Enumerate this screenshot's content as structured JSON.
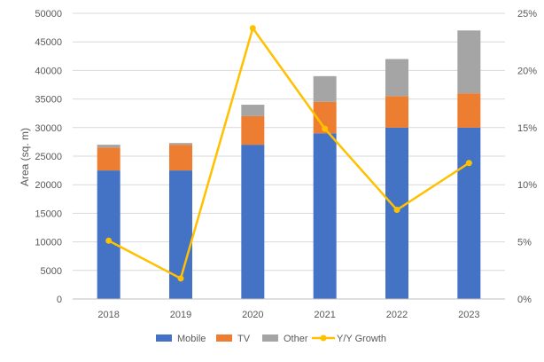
{
  "chart_data": {
    "type": "bar",
    "stacked": true,
    "categories": [
      "2018",
      "2019",
      "2020",
      "2021",
      "2022",
      "2023"
    ],
    "series": [
      {
        "name": "Mobile",
        "type": "bar",
        "axis": "primary",
        "color": "#4472C4",
        "values": [
          22500,
          22500,
          27000,
          29000,
          30000,
          30000
        ]
      },
      {
        "name": "TV",
        "type": "bar",
        "axis": "primary",
        "color": "#ED7D31",
        "values": [
          4000,
          4500,
          5000,
          5500,
          5500,
          6000
        ]
      },
      {
        "name": "Other",
        "type": "bar",
        "axis": "primary",
        "color": "#A5A5A5",
        "values": [
          500,
          300,
          2000,
          4500,
          6500,
          11000
        ]
      },
      {
        "name": "Y/Y Growth",
        "type": "line",
        "axis": "secondary",
        "color": "#FFC000",
        "values": [
          5.1,
          1.8,
          23.7,
          14.9,
          7.8,
          11.9
        ]
      }
    ],
    "ylabel": "Area (sq. m)",
    "ylim": [
      0,
      50000
    ],
    "yticks": [
      "0",
      "5000",
      "10000",
      "15000",
      "20000",
      "25000",
      "30000",
      "35000",
      "40000",
      "45000",
      "50000"
    ],
    "y2lim": [
      0,
      25
    ],
    "y2ticks": [
      "0%",
      "5%",
      "10%",
      "15%",
      "20%",
      "25%"
    ],
    "grid": true,
    "legend": "bottom"
  }
}
